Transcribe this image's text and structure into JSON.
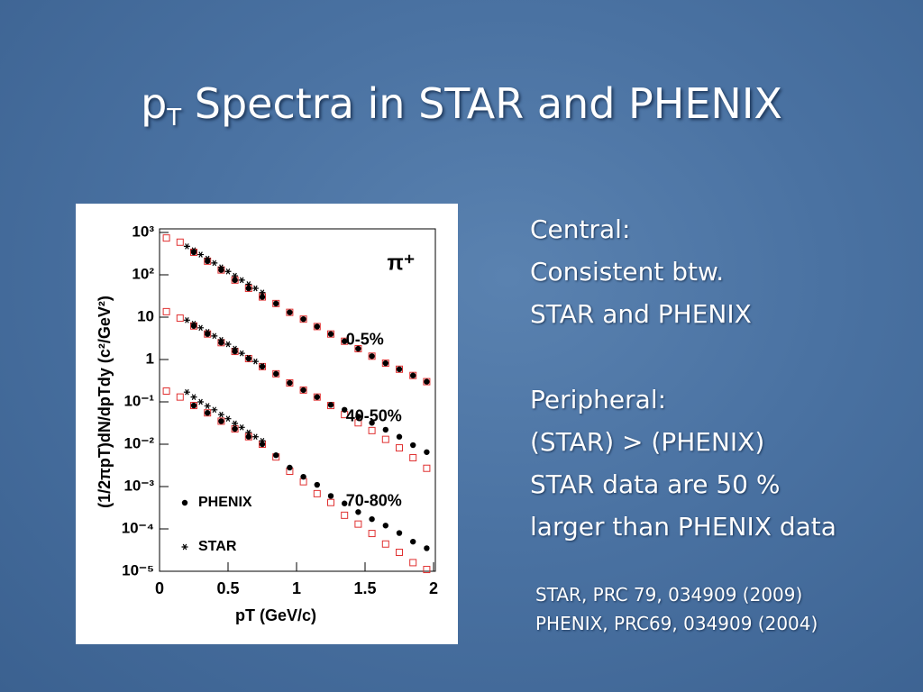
{
  "slide": {
    "title": {
      "main": "p",
      "subscript": "T",
      "rest": " Spectra in STAR and PHENIX"
    },
    "central_notes": [
      "Central:",
      "Consistent btw.",
      "STAR and PHENIX"
    ],
    "peripheral_notes": [
      "Peripheral:",
      "(STAR) > (PHENIX)",
      "STAR data are 50 %",
      "larger than PHENIX data"
    ],
    "references": [
      "STAR, PRC 79, 034909 (2009)",
      "PHENIX, PRC69, 034909 (2004)"
    ]
  },
  "chart_data": {
    "type": "scatter",
    "x_label": "pT (GeV/c)",
    "y_label": "(1/2πpT)dN/dpTdy (c²/GeV²)",
    "ylog": true,
    "xlim": [
      0,
      2
    ],
    "ylim": [
      1e-05,
      1000
    ],
    "xticks": [
      0,
      0.5,
      1,
      1.5,
      2
    ],
    "yticks": [
      {
        "value": 1e-05,
        "label": "10⁻⁵"
      },
      {
        "value": 0.0001,
        "label": "10⁻⁴"
      },
      {
        "value": 0.001,
        "label": "10⁻³"
      },
      {
        "value": 0.01,
        "label": "10⁻²"
      },
      {
        "value": 0.1,
        "label": "10⁻¹"
      },
      1,
      10,
      {
        "value": 100,
        "label": "10²"
      },
      {
        "value": 1000,
        "label": "10³"
      }
    ],
    "annotations": [
      {
        "text": "π⁺",
        "x": 1.66,
        "y": 180
      },
      {
        "text": "0-5%",
        "x": 1.36,
        "y": 2.8
      },
      {
        "text": "40-50%",
        "x": 1.36,
        "y": 0.044
      },
      {
        "text": "70-80%",
        "x": 1.36,
        "y": 0.00044
      }
    ],
    "series": [
      {
        "marker": "open-square",
        "color": "#e03030",
        "x": [
          0.05,
          0.15,
          0.25,
          0.35,
          0.45,
          0.55,
          0.65,
          0.75,
          0.85,
          0.95,
          1.05,
          1.15,
          1.25,
          1.35,
          1.45,
          1.55,
          1.65,
          1.75,
          1.85,
          1.95
        ],
        "values": [
          740,
          590,
          340,
          210,
          130,
          75,
          48,
          30,
          21,
          13,
          9,
          6,
          4,
          2.7,
          1.8,
          1.2,
          0.82,
          0.59,
          0.42,
          0.3
        ]
      },
      {
        "marker": "open-square",
        "color": "#e03030",
        "x": [
          0.05,
          0.15,
          0.25,
          0.35,
          0.45,
          0.55,
          0.65,
          0.75,
          0.85,
          0.95,
          1.05,
          1.15,
          1.25,
          1.35,
          1.45,
          1.55,
          1.65,
          1.75,
          1.85,
          1.95
        ],
        "values": [
          13.5,
          9.5,
          6.2,
          4,
          2.5,
          1.55,
          1.05,
          0.68,
          0.46,
          0.28,
          0.19,
          0.13,
          0.082,
          0.05,
          0.032,
          0.021,
          0.013,
          0.0082,
          0.0048,
          0.0027
        ]
      },
      {
        "marker": "open-square",
        "color": "#e03030",
        "x": [
          0.05,
          0.15,
          0.25,
          0.35,
          0.45,
          0.55,
          0.65,
          0.75,
          0.85,
          0.95,
          1.05,
          1.15,
          1.25,
          1.35,
          1.45,
          1.55,
          1.65,
          1.75,
          1.85,
          1.95
        ],
        "values": [
          0.18,
          0.13,
          0.082,
          0.055,
          0.035,
          0.023,
          0.015,
          0.01,
          0.005,
          0.0023,
          0.0013,
          0.00068,
          0.00042,
          0.00021,
          0.00013,
          7.8e-05,
          4.4e-05,
          2.8e-05,
          1.6e-05,
          1.1e-05
        ]
      },
      {
        "name": "PHENIX",
        "marker": "circle",
        "color": "#000000",
        "x": [
          0.25,
          0.35,
          0.45,
          0.55,
          0.65,
          0.75,
          0.85,
          0.95,
          1.05,
          1.15,
          1.25,
          1.35,
          1.45,
          1.55,
          1.65,
          1.75,
          1.85,
          1.95
        ],
        "values": [
          340,
          210,
          130,
          75,
          48,
          30,
          21,
          13,
          9,
          6,
          4,
          2.7,
          1.8,
          1.2,
          0.82,
          0.59,
          0.42,
          0.3
        ]
      },
      {
        "marker": "circle",
        "color": "#000000",
        "x": [
          0.25,
          0.35,
          0.45,
          0.55,
          0.65,
          0.75,
          0.85,
          0.95,
          1.05,
          1.15,
          1.25,
          1.35,
          1.45,
          1.55,
          1.65,
          1.75,
          1.85,
          1.95
        ],
        "values": [
          6.2,
          4,
          2.5,
          1.55,
          1.05,
          0.68,
          0.46,
          0.28,
          0.19,
          0.13,
          0.085,
          0.065,
          0.045,
          0.032,
          0.022,
          0.015,
          0.0095,
          0.0065
        ]
      },
      {
        "marker": "circle",
        "color": "#000000",
        "x": [
          0.25,
          0.35,
          0.45,
          0.55,
          0.65,
          0.75,
          0.85,
          0.95,
          1.05,
          1.15,
          1.25,
          1.35,
          1.45,
          1.55,
          1.65,
          1.75,
          1.85,
          1.95
        ],
        "values": [
          0.082,
          0.055,
          0.035,
          0.023,
          0.015,
          0.01,
          0.0055,
          0.0028,
          0.0017,
          0.0011,
          0.0006,
          0.0004,
          0.00025,
          0.00017,
          0.00012,
          8e-05,
          5e-05,
          3.5e-05
        ]
      },
      {
        "name": "STAR",
        "marker": "star",
        "color": "#000000",
        "x": [
          0.2,
          0.25,
          0.3,
          0.35,
          0.4,
          0.45,
          0.5,
          0.55,
          0.6,
          0.65,
          0.7,
          0.75
        ],
        "values": [
          470,
          380,
          300,
          240,
          190,
          150,
          120,
          95,
          75,
          60,
          48,
          38
        ]
      },
      {
        "marker": "star",
        "color": "#000000",
        "x": [
          0.2,
          0.25,
          0.3,
          0.35,
          0.4,
          0.45,
          0.5,
          0.55,
          0.6,
          0.65,
          0.7,
          0.75
        ],
        "values": [
          8.5,
          7,
          5.6,
          4.5,
          3.6,
          2.9,
          2.3,
          1.8,
          1.4,
          1.1,
          0.9,
          0.7
        ]
      },
      {
        "marker": "star",
        "color": "#000000",
        "x": [
          0.2,
          0.25,
          0.3,
          0.35,
          0.4,
          0.45,
          0.5,
          0.55,
          0.6,
          0.65,
          0.7,
          0.75
        ],
        "values": [
          0.17,
          0.13,
          0.1,
          0.08,
          0.065,
          0.05,
          0.04,
          0.031,
          0.025,
          0.019,
          0.015,
          0.012
        ]
      }
    ]
  }
}
